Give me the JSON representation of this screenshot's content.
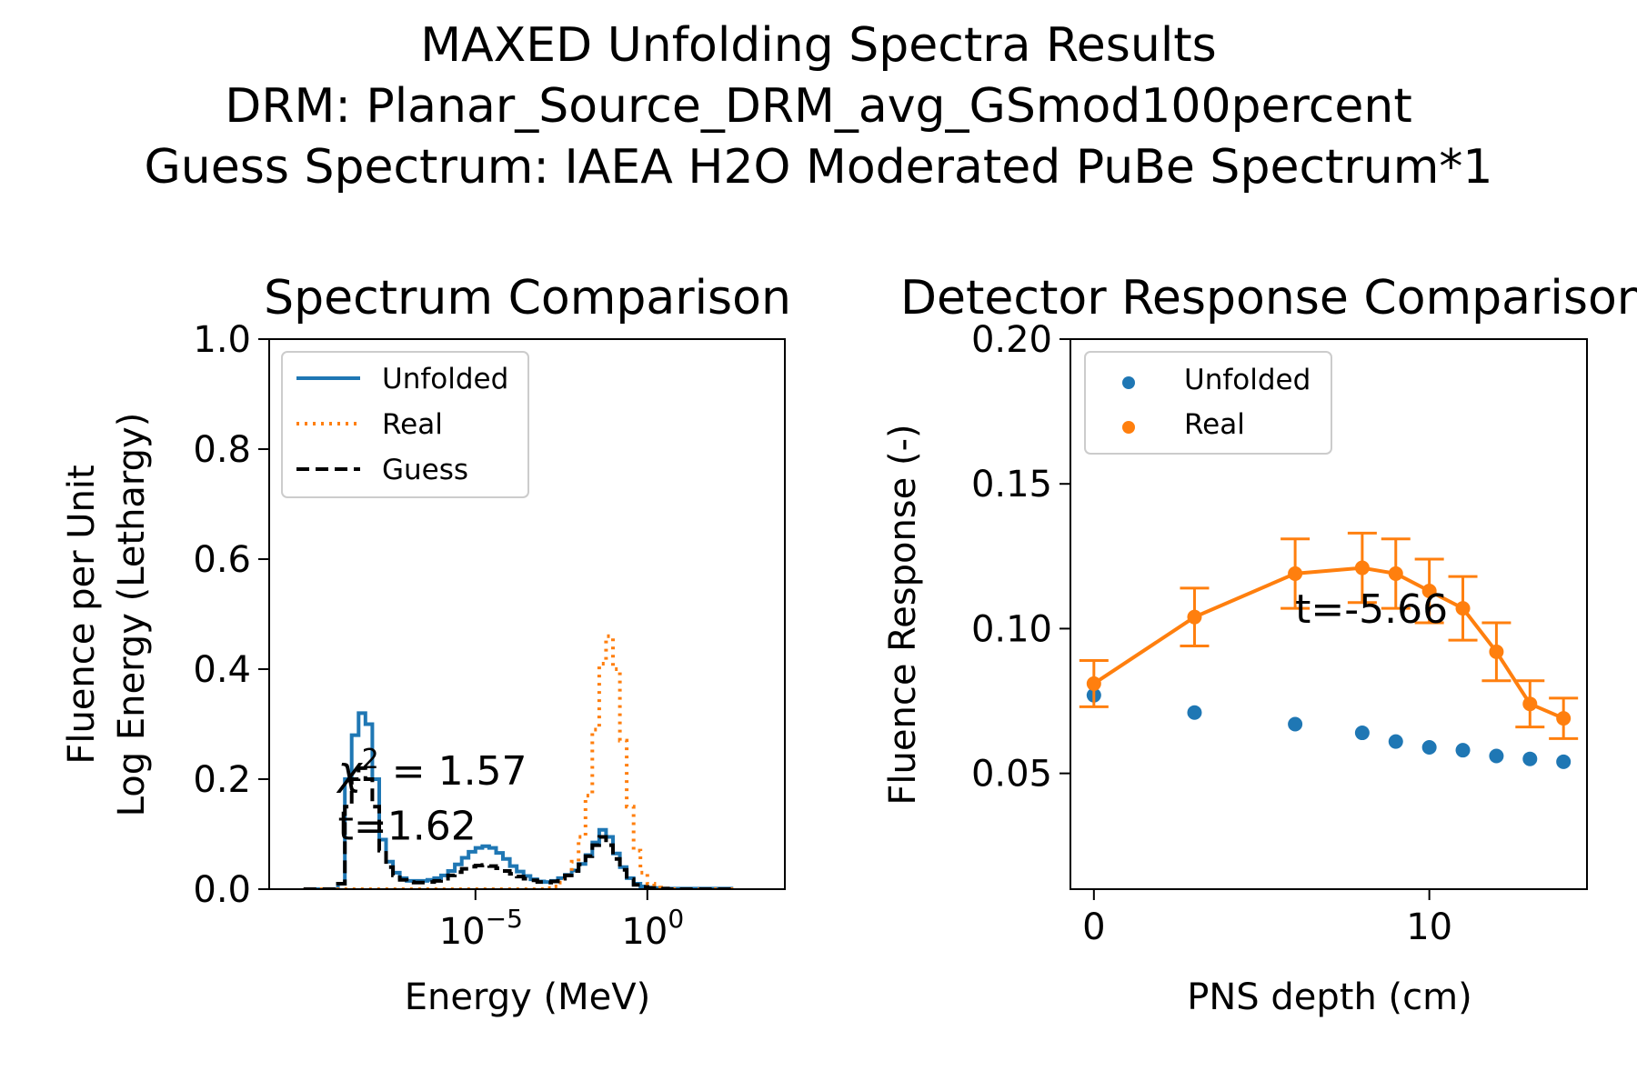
{
  "figure": {
    "title_lines": [
      "MAXED Unfolding Spectra Results",
      "DRM: Planar_Source_DRM_avg_GSmod100percent",
      "Guess Spectrum: IAEA H2O Moderated PuBe Spectrum*1"
    ]
  },
  "colors": {
    "unfolded": "#1f77b4",
    "real": "#ff7f0e",
    "guess": "#000000"
  },
  "chart_data": [
    {
      "type": "line",
      "title": "Spectrum Comparison",
      "xlabel": "Energy (MeV)",
      "ylabel_lines": [
        "Fluence per Unit",
        "Log Energy (Lethargy)"
      ],
      "x_scale": "log",
      "xlim": [
        1e-11,
        10000
      ],
      "ylim": [
        0,
        1.0
      ],
      "x_ticks": [
        {
          "value": 1e-05,
          "base": "10",
          "exp": "−5"
        },
        {
          "value": 1,
          "base": "10",
          "exp": "0"
        }
      ],
      "y_ticks": [
        {
          "value": 0.0,
          "label": "0.0"
        },
        {
          "value": 0.2,
          "label": "0.2"
        },
        {
          "value": 0.4,
          "label": "0.4"
        },
        {
          "value": 0.6,
          "label": "0.6"
        },
        {
          "value": 0.8,
          "label": "0.8"
        },
        {
          "value": 1.0,
          "label": "1.0"
        }
      ],
      "legend_position": "upper-left",
      "grid": false,
      "bin_edges_log10": [
        -10,
        -9.5,
        -9,
        -8.8,
        -8.6,
        -8.4,
        -8.2,
        -8,
        -7.8,
        -7.6,
        -7.4,
        -7.2,
        -7,
        -6.8,
        -6.6,
        -6.4,
        -6.2,
        -6,
        -5.8,
        -5.6,
        -5.4,
        -5.2,
        -5,
        -4.8,
        -4.6,
        -4.4,
        -4.2,
        -4,
        -3.8,
        -3.6,
        -3.4,
        -3.2,
        -3,
        -2.8,
        -2.6,
        -2.4,
        -2.2,
        -2,
        -1.8,
        -1.6,
        -1.4,
        -1.2,
        -1,
        -0.8,
        -0.6,
        -0.4,
        -0.2,
        0,
        0.2,
        0.4,
        0.6,
        0.8,
        1,
        1.3,
        1.7,
        2.5
      ],
      "series": [
        {
          "name": "Unfolded",
          "style": "solid",
          "values": [
            0,
            0,
            0.01,
            0.2,
            0.28,
            0.32,
            0.3,
            0.2,
            0.09,
            0.05,
            0.03,
            0.02,
            0.015,
            0.015,
            0.015,
            0.017,
            0.02,
            0.025,
            0.033,
            0.045,
            0.057,
            0.068,
            0.075,
            0.078,
            0.075,
            0.066,
            0.055,
            0.042,
            0.032,
            0.024,
            0.018,
            0.014,
            0.013,
            0.015,
            0.02,
            0.026,
            0.034,
            0.046,
            0.062,
            0.085,
            0.108,
            0.095,
            0.065,
            0.04,
            0.02,
            0.01,
            0.005,
            0.003,
            0.002,
            0.001,
            0.001,
            0.001,
            0.001,
            0.001,
            0.001
          ]
        },
        {
          "name": "Real",
          "style": "dotted",
          "values": [
            0,
            0,
            0,
            0,
            0,
            0,
            0,
            0,
            0,
            0,
            0,
            0,
            0,
            0,
            0,
            0,
            0,
            0,
            0,
            0,
            0,
            0,
            0,
            0,
            0,
            0,
            0,
            0,
            0,
            0,
            0,
            0,
            0.002,
            0.005,
            0.012,
            0.025,
            0.05,
            0.095,
            0.17,
            0.29,
            0.41,
            0.46,
            0.4,
            0.27,
            0.15,
            0.07,
            0.03,
            0.01,
            0.003,
            0.001,
            0,
            0,
            0,
            0,
            0
          ]
        },
        {
          "name": "Guess",
          "style": "dashed",
          "values": [
            0,
            0,
            0.01,
            0.15,
            0.2,
            0.22,
            0.2,
            0.15,
            0.07,
            0.04,
            0.025,
            0.017,
            0.013,
            0.012,
            0.012,
            0.013,
            0.015,
            0.019,
            0.025,
            0.031,
            0.037,
            0.041,
            0.043,
            0.044,
            0.042,
            0.038,
            0.033,
            0.028,
            0.023,
            0.019,
            0.016,
            0.013,
            0.012,
            0.014,
            0.019,
            0.025,
            0.033,
            0.045,
            0.06,
            0.08,
            0.095,
            0.08,
            0.055,
            0.035,
            0.018,
            0.008,
            0.004,
            0.002,
            0.001,
            0.001,
            0,
            0,
            0,
            0,
            0
          ]
        }
      ],
      "annotations": [
        {
          "chi_symbol": "χ",
          "chi_sup": "2",
          "chi_rest": " = 1.57",
          "x": 1e-09,
          "y": 0.19
        },
        {
          "text": "t=1.62",
          "x": 1e-09,
          "y": 0.09
        }
      ]
    },
    {
      "type": "scatter",
      "title": "Detector Response Comparison",
      "xlabel": "PNS depth (cm)",
      "ylabel": "Fluence Response (-)",
      "xlim": [
        -0.7,
        14.7
      ],
      "ylim": [
        0.01,
        0.2
      ],
      "x_ticks": [
        {
          "value": 0,
          "label": "0"
        },
        {
          "value": 10,
          "label": "10"
        }
      ],
      "y_ticks": [
        {
          "value": 0.05,
          "label": "0.05"
        },
        {
          "value": 0.1,
          "label": "0.10"
        },
        {
          "value": 0.15,
          "label": "0.15"
        },
        {
          "value": 0.2,
          "label": "0.20"
        }
      ],
      "legend_position": "upper-left",
      "grid": false,
      "x": [
        0,
        3,
        6,
        8,
        9,
        10,
        11,
        12,
        13,
        14
      ],
      "series": [
        {
          "name": "Unfolded",
          "values": [
            0.077,
            0.071,
            0.067,
            0.064,
            0.061,
            0.059,
            0.058,
            0.056,
            0.055,
            0.054
          ]
        },
        {
          "name": "Real",
          "values": [
            0.081,
            0.104,
            0.119,
            0.121,
            0.119,
            0.113,
            0.107,
            0.092,
            0.074,
            0.069
          ],
          "errors": [
            0.008,
            0.01,
            0.012,
            0.012,
            0.012,
            0.011,
            0.011,
            0.01,
            0.008,
            0.007
          ]
        }
      ],
      "annotations": [
        {
          "text": "t=-5.66",
          "x": 6,
          "y": 0.102
        }
      ]
    }
  ]
}
